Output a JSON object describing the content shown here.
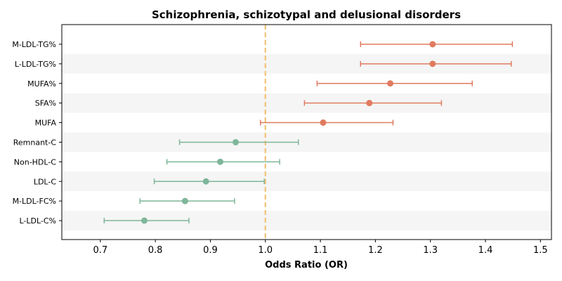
{
  "chart_data": {
    "type": "forest",
    "title": "Schizophrenia, schizotypal and delusional disorders",
    "xlabel": "Odds Ratio (OR)",
    "ylabel": "",
    "xlim": [
      0.63,
      1.52
    ],
    "xticks": [
      0.7,
      0.8,
      0.9,
      1.0,
      1.1,
      1.2,
      1.3,
      1.4,
      1.5
    ],
    "xtick_labels": [
      "0.7",
      "0.8",
      "0.9",
      "1.0",
      "1.1",
      "1.2",
      "1.3",
      "1.4",
      "1.5"
    ],
    "reference_line": 1.0,
    "row_banding": true,
    "grid": false,
    "colors": {
      "increased": "#e07b5f",
      "decreased": "#7fb69a",
      "reference": "#f2c27a",
      "band": "#f5f5f5"
    },
    "rows": [
      {
        "label": "M-LDL-TG%",
        "or": 1.304,
        "lower": 1.173,
        "upper": 1.449,
        "group": "increased"
      },
      {
        "label": "L-LDL-TG%",
        "or": 1.304,
        "lower": 1.173,
        "upper": 1.447,
        "group": "increased"
      },
      {
        "label": "MUFA%",
        "or": 1.227,
        "lower": 1.094,
        "upper": 1.376,
        "group": "increased"
      },
      {
        "label": "SFA%",
        "or": 1.189,
        "lower": 1.071,
        "upper": 1.32,
        "group": "increased"
      },
      {
        "label": "MUFA",
        "or": 1.105,
        "lower": 0.991,
        "upper": 1.232,
        "group": "increased"
      },
      {
        "label": "Remnant-C",
        "or": 0.946,
        "lower": 0.844,
        "upper": 1.06,
        "group": "decreased"
      },
      {
        "label": "Non-HDL-C",
        "or": 0.918,
        "lower": 0.821,
        "upper": 1.026,
        "group": "decreased"
      },
      {
        "label": "LDL-C",
        "or": 0.892,
        "lower": 0.798,
        "upper": 0.998,
        "group": "decreased"
      },
      {
        "label": "M-LDL-FC%",
        "or": 0.854,
        "lower": 0.772,
        "upper": 0.944,
        "group": "decreased"
      },
      {
        "label": "L-LDL-C%",
        "or": 0.78,
        "lower": 0.707,
        "upper": 0.861,
        "group": "decreased"
      }
    ]
  }
}
